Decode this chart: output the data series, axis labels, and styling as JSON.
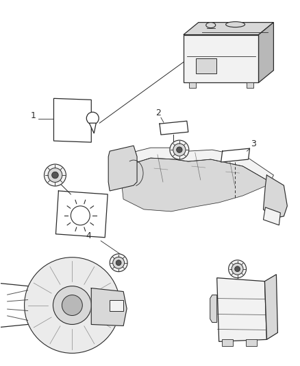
{
  "bg_color": "#ffffff",
  "fig_width": 4.38,
  "fig_height": 5.33,
  "dpi": 100,
  "line_color": "#2a2a2a",
  "fill_light": "#f2f2f2",
  "fill_mid": "#d8d8d8",
  "fill_dark": "#b8b8b8"
}
